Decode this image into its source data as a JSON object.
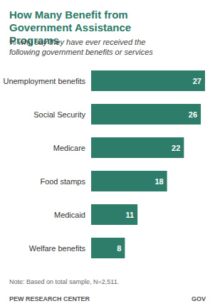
{
  "chart_data": {
    "type": "bar",
    "orientation": "horizontal",
    "title": "How Many Benefit from Government Assistance Programs",
    "subtitle": "% who say they have ever received the following government benefits or services",
    "categories": [
      "Unemployment benefits",
      "Social Security",
      "Medicare",
      "Food stamps",
      "Medicaid",
      "Welfare benefits"
    ],
    "values": [
      27,
      26,
      22,
      18,
      11,
      8
    ],
    "color": "#2e7d6b",
    "xlim": [
      0,
      27
    ],
    "xticks": [
      0,
      27
    ],
    "grid": false,
    "data_labels": true,
    "tick_labels": "y",
    "note": "Note: Based on total sample, N=2,511.",
    "source": "PEW RESEARCH CENTER",
    "tag": "GOV"
  }
}
